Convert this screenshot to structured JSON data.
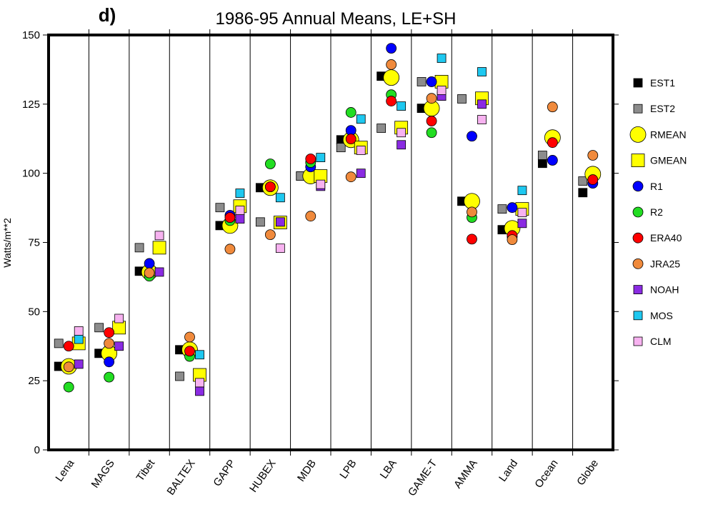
{
  "chart_data": {
    "type": "scatter",
    "panel_label": "d)",
    "title": "1986-95 Annual Means, LE+SH",
    "y_label": "Watts/m**2",
    "categories": [
      "Lena",
      "MAGS",
      "Tibet",
      "BALTEX",
      "GAPP",
      "HUBEX",
      "MDB",
      "LPB",
      "LBA",
      "GAME-T",
      "AMMA",
      "Land",
      "Ocean",
      "Globe"
    ],
    "ylim": [
      0,
      150
    ],
    "yticks": [
      0,
      25,
      50,
      75,
      100,
      125,
      150
    ],
    "series": [
      {
        "name": "EST1",
        "color": "#000000",
        "marker": "square",
        "values": [
          30.2,
          34.9,
          64.6,
          36.2,
          81.1,
          94.8,
          99,
          112.1,
          135.1,
          123.5,
          89.9,
          79.6,
          103.6,
          93
        ]
      },
      {
        "name": "EST2",
        "color": "#8c8c8c",
        "marker": "square",
        "values": [
          38.5,
          44.2,
          73.1,
          26.6,
          87.6,
          82.4,
          99,
          109.3,
          116.3,
          133.1,
          126.9,
          87.1,
          106.5,
          97.2
        ]
      },
      {
        "name": "RMEAN",
        "color": "#ffff00",
        "marker": "large-circle",
        "values": [
          30.2,
          34.9,
          64.3,
          36.2,
          81.1,
          94.8,
          99,
          112.1,
          134.6,
          123.5,
          89.9,
          80.1,
          112.9,
          99.7
        ]
      },
      {
        "name": "GMEAN",
        "color": "#ffff00",
        "marker": "large-square",
        "values": [
          38.5,
          44.2,
          73.1,
          27.1,
          88.1,
          82.2,
          99,
          109.3,
          116.5,
          133.1,
          127.1,
          87.1,
          null,
          null
        ]
      },
      {
        "name": "R1",
        "color": "#0000ff",
        "marker": "circle",
        "values": [
          null,
          31.8,
          67.4,
          null,
          84.8,
          95.1,
          102.3,
          115.5,
          145.2,
          133.1,
          113.4,
          87.6,
          104.7,
          96.4
        ]
      },
      {
        "name": "R2",
        "color": "#22dd22",
        "marker": "circle",
        "values": [
          22.7,
          26.3,
          62.8,
          33.8,
          82.9,
          103.4,
          103.9,
          122,
          128.4,
          114.7,
          84,
          77,
          null,
          null
        ]
      },
      {
        "name": "ERA40",
        "color": "#ff0000",
        "marker": "circle",
        "values": [
          37.5,
          42.4,
          null,
          35.7,
          84,
          95.1,
          105.2,
          112.4,
          126.1,
          118.9,
          76.2,
          77.5,
          111.1,
          97.7
        ]
      },
      {
        "name": "JRA25",
        "color": "#f08a3c",
        "marker": "circle",
        "values": [
          30,
          38.5,
          64,
          40.8,
          72.6,
          77.8,
          84.5,
          98.7,
          139.3,
          127.1,
          86,
          76,
          124,
          106.5
        ]
      },
      {
        "name": "NOAH",
        "color": "#8a2be2",
        "marker": "square",
        "values": [
          31,
          37.5,
          64.3,
          21.2,
          83.5,
          82.4,
          95.3,
          100,
          110.3,
          127.9,
          125,
          81.9,
          null,
          null
        ]
      },
      {
        "name": "MOS",
        "color": "#1ec8f0",
        "marker": "square",
        "values": [
          40,
          null,
          null,
          34.4,
          92.8,
          91.2,
          105.7,
          119.6,
          124.3,
          141.6,
          136.7,
          93.8,
          null,
          null
        ]
      },
      {
        "name": "CLM",
        "color": "#f7b2f0",
        "marker": "square",
        "values": [
          43,
          47.5,
          77.5,
          24.3,
          86.6,
          72.9,
          96,
          108.3,
          114.7,
          130,
          119.4,
          85.8,
          null,
          null
        ]
      }
    ]
  }
}
